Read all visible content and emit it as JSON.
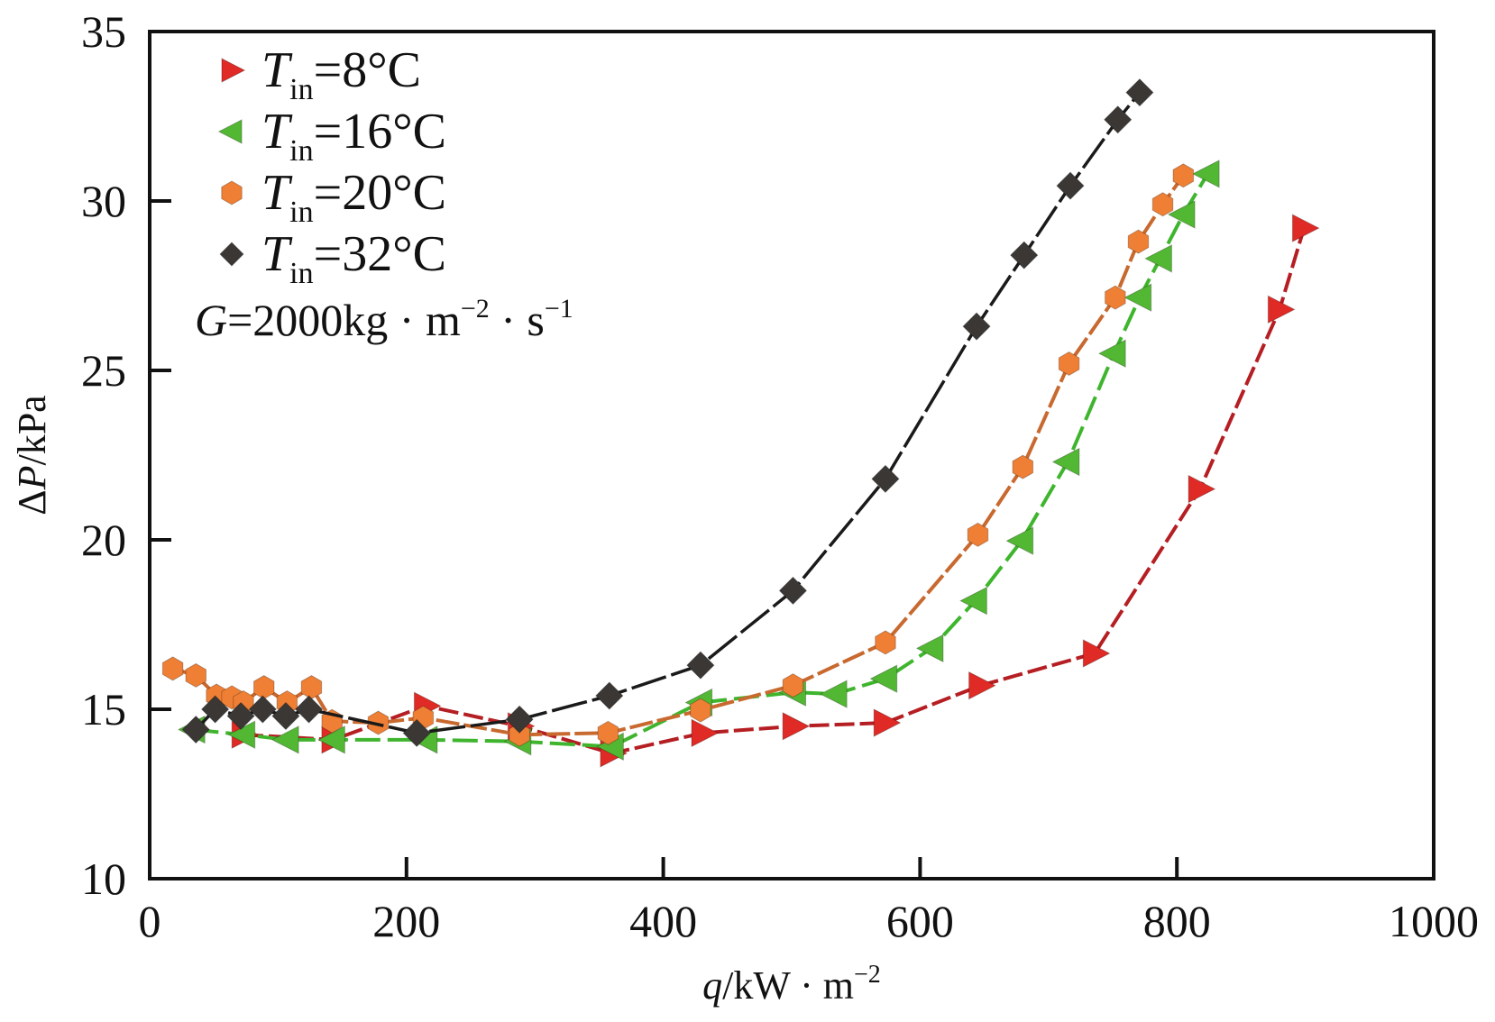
{
  "chart_data": {
    "type": "line",
    "title": "",
    "xlabel": {
      "italic": "q",
      "rest": "/kW · m",
      "sup": "−2"
    },
    "ylabel": {
      "prefix": "Δ",
      "italic": "P",
      "rest": "/kPa"
    },
    "xlim": [
      0,
      1000
    ],
    "ylim": [
      10,
      35
    ],
    "xticks": [
      0,
      200,
      400,
      600,
      800,
      1000
    ],
    "yticks": [
      10,
      15,
      20,
      25,
      30,
      35
    ],
    "grid": false,
    "legend_position": "top-left",
    "annotation": {
      "italic": "G",
      "text": "=2000kg · m",
      "sup1": "−2",
      "mid": " · s",
      "sup2": "−1"
    },
    "series": [
      {
        "name": "Tin=8°C",
        "label_value": "=8°C",
        "marker": "triangle-right",
        "color": "#e02a25",
        "line_color": "#b51e22",
        "dash": "22,6",
        "x": [
          73,
          143,
          215,
          288,
          360,
          431,
          502,
          573,
          647,
          736,
          818,
          880,
          899
        ],
        "y": [
          14.25,
          14.1,
          15.1,
          14.5,
          13.7,
          14.3,
          14.5,
          14.6,
          15.7,
          16.65,
          21.5,
          26.8,
          29.2
        ]
      },
      {
        "name": "Tin=16°C",
        "label_value": "=16°C",
        "marker": "triangle-left",
        "color": "#52b733",
        "line_color": "#3fb52e",
        "dash": "28,8",
        "x": [
          34,
          73,
          107,
          143,
          215,
          288,
          360,
          429,
          502,
          534,
          573,
          609,
          643,
          679,
          715,
          751,
          771,
          787,
          805,
          824
        ],
        "y": [
          14.4,
          14.25,
          14.1,
          14.1,
          14.1,
          14.05,
          13.9,
          15.2,
          15.5,
          15.45,
          15.9,
          16.8,
          18.2,
          19.97,
          22.3,
          25.5,
          27.15,
          28.3,
          29.6,
          30.8
        ]
      },
      {
        "name": "Tin=20°C",
        "label_value": "=20°C",
        "marker": "hexagon",
        "color": "#ef7f34",
        "line_color": "#c8692f",
        "dash": "26,5",
        "x": [
          18,
          36,
          52,
          64,
          73,
          89,
          107,
          126,
          142,
          178,
          213,
          288,
          357,
          429,
          501,
          573,
          645,
          680,
          716,
          752,
          770,
          789,
          805
        ],
        "y": [
          16.2,
          16.0,
          15.4,
          15.35,
          15.2,
          15.65,
          15.2,
          15.65,
          14.65,
          14.6,
          14.75,
          14.25,
          14.3,
          14.97,
          15.7,
          16.97,
          20.15,
          22.15,
          25.2,
          27.15,
          28.8,
          29.9,
          30.75
        ]
      },
      {
        "name": "Tin=32°C",
        "label_value": "=32°C",
        "marker": "diamond",
        "color": "#3a3735",
        "line_color": "#1a1a1a",
        "dash": "40,6",
        "x": [
          36,
          51,
          71,
          88,
          106,
          124,
          208,
          288,
          358,
          429,
          501,
          573,
          644,
          681,
          717,
          754,
          771
        ],
        "y": [
          14.4,
          15.0,
          14.8,
          15.0,
          14.8,
          15.0,
          14.3,
          14.7,
          15.4,
          16.3,
          18.5,
          21.8,
          26.3,
          28.4,
          30.45,
          32.4,
          33.2
        ]
      }
    ]
  }
}
